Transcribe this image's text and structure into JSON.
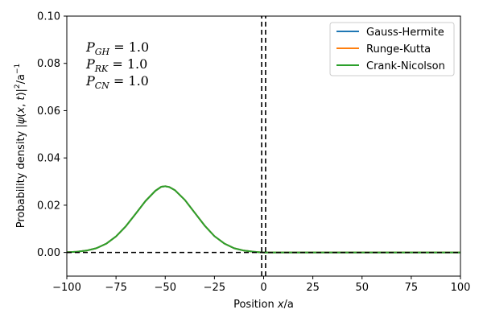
{
  "chart_data": {
    "type": "line",
    "xlabel_parts": [
      "Position ",
      "x",
      "/a"
    ],
    "ylabel_parts": [
      "Probability density |",
      "ψ",
      "(",
      "x",
      ", ",
      "t",
      ")|",
      "2",
      "/a",
      "−1"
    ],
    "xlim": [
      -100,
      100
    ],
    "ylim": [
      -0.01,
      0.1
    ],
    "xticks": [
      -100,
      -75,
      -50,
      -25,
      0,
      25,
      50,
      75,
      100
    ],
    "xtick_labels": [
      "−100",
      "−75",
      "−50",
      "−25",
      "0",
      "25",
      "50",
      "75",
      "100"
    ],
    "yticks": [
      0.0,
      0.02,
      0.04,
      0.06,
      0.08,
      0.1
    ],
    "ytick_labels": [
      "0.00",
      "0.02",
      "0.04",
      "0.06",
      "0.08",
      "0.10"
    ],
    "grid": false,
    "legend_position": "top-right",
    "series": [
      {
        "name": "Gauss-Hermite",
        "color": "#1f77b4",
        "x": [
          -100,
          -95,
          -90,
          -85,
          -80,
          -75,
          -70,
          -65,
          -60,
          -55,
          -52,
          -50,
          -48,
          -45,
          -40,
          -35,
          -30,
          -25,
          -20,
          -15,
          -10,
          -5,
          -2,
          0,
          25,
          50,
          75,
          100
        ],
        "y": [
          0.0001,
          0.0003,
          0.0008,
          0.0018,
          0.0037,
          0.0068,
          0.0111,
          0.0164,
          0.0218,
          0.0261,
          0.0278,
          0.028,
          0.0277,
          0.0263,
          0.0222,
          0.0168,
          0.0114,
          0.0069,
          0.0038,
          0.0018,
          0.0008,
          0.0003,
          0.0001,
          0.0,
          0.0,
          0.0,
          0.0,
          0.0
        ]
      },
      {
        "name": "Runge-Kutta",
        "color": "#ff7f0e",
        "x": [
          -100,
          -95,
          -90,
          -85,
          -80,
          -75,
          -70,
          -65,
          -60,
          -55,
          -52,
          -50,
          -48,
          -45,
          -40,
          -35,
          -30,
          -25,
          -20,
          -15,
          -10,
          -5,
          -2,
          0,
          25,
          50,
          75,
          100
        ],
        "y": [
          0.0001,
          0.0003,
          0.0008,
          0.0018,
          0.0037,
          0.0068,
          0.0111,
          0.0164,
          0.0218,
          0.0261,
          0.0278,
          0.028,
          0.0277,
          0.0263,
          0.0222,
          0.0168,
          0.0114,
          0.0069,
          0.0038,
          0.0018,
          0.0008,
          0.0003,
          0.0001,
          0.0,
          0.0,
          0.0,
          0.0,
          0.0
        ]
      },
      {
        "name": "Crank-Nicolson",
        "color": "#2ca02c",
        "x": [
          -100,
          -95,
          -90,
          -85,
          -80,
          -75,
          -70,
          -65,
          -60,
          -55,
          -52,
          -50,
          -48,
          -45,
          -40,
          -35,
          -30,
          -25,
          -20,
          -15,
          -10,
          -5,
          -2,
          0,
          25,
          50,
          75,
          100
        ],
        "y": [
          0.0001,
          0.0003,
          0.0008,
          0.0018,
          0.0037,
          0.0068,
          0.0111,
          0.0164,
          0.0218,
          0.0261,
          0.0278,
          0.028,
          0.0277,
          0.0263,
          0.0222,
          0.0168,
          0.0114,
          0.0069,
          0.0038,
          0.0018,
          0.0008,
          0.0003,
          0.0001,
          0.0,
          0.0,
          0.0,
          0.0,
          0.0
        ]
      }
    ],
    "barrier": {
      "left_x": -1,
      "right_x": 1,
      "baseline_y": 0.0,
      "style": "dashed",
      "color": "#000000"
    },
    "annotations": [
      {
        "symbol": "P",
        "sub": "GH",
        "eq": " = ",
        "value": "1.0"
      },
      {
        "symbol": "P",
        "sub": "RK",
        "eq": " = ",
        "value": "1.0"
      },
      {
        "symbol": "P",
        "sub": "CN",
        "eq": " = ",
        "value": "1.0"
      }
    ]
  }
}
